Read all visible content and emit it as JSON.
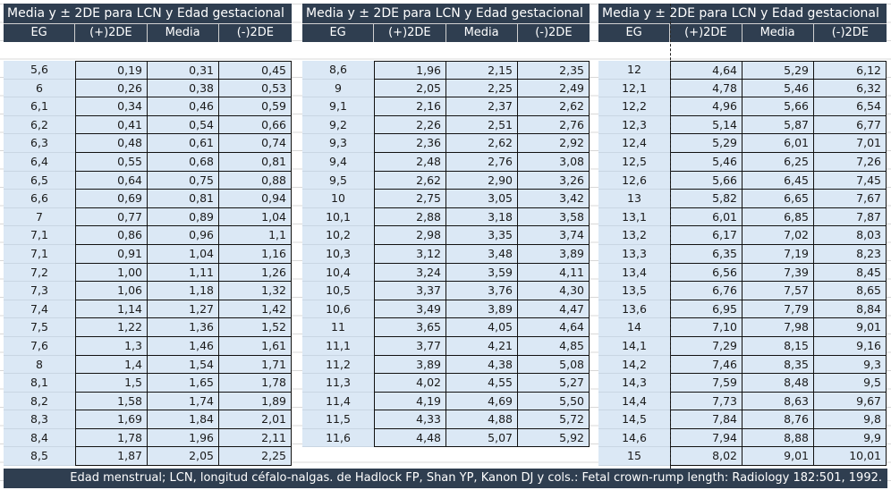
{
  "tables": [
    {
      "title": "Media y ± 2DE para LCN y Edad gestacional",
      "headers": [
        "EG",
        "(+)2DE",
        "Media",
        "(-)2DE"
      ],
      "rows": [
        [
          "5,6",
          "0,19",
          "0,31",
          "0,45"
        ],
        [
          "6",
          "0,26",
          "0,38",
          "0,53"
        ],
        [
          "6,1",
          "0,34",
          "0,46",
          "0,59"
        ],
        [
          "6,2",
          "0,41",
          "0,54",
          "0,66"
        ],
        [
          "6,3",
          "0,48",
          "0,61",
          "0,74"
        ],
        [
          "6,4",
          "0,55",
          "0,68",
          "0,81"
        ],
        [
          "6,5",
          "0,64",
          "0,75",
          "0,88"
        ],
        [
          "6,6",
          "0,69",
          "0,81",
          "0,94"
        ],
        [
          "7",
          "0,77",
          "0,89",
          "1,04"
        ],
        [
          "7,1",
          "0,86",
          "0,96",
          "1,1"
        ],
        [
          "7,1",
          "0,91",
          "1,04",
          "1,16"
        ],
        [
          "7,2",
          "1,00",
          "1,11",
          "1,26"
        ],
        [
          "7,3",
          "1,06",
          "1,18",
          "1,32"
        ],
        [
          "7,4",
          "1,14",
          "1,27",
          "1,42"
        ],
        [
          "7,5",
          "1,22",
          "1,36",
          "1,52"
        ],
        [
          "7,6",
          "1,3",
          "1,46",
          "1,61"
        ],
        [
          "8",
          "1,4",
          "1,54",
          "1,71"
        ],
        [
          "8,1",
          "1,5",
          "1,65",
          "1,78"
        ],
        [
          "8,2",
          "1,58",
          "1,74",
          "1,89"
        ],
        [
          "8,3",
          "1,69",
          "1,84",
          "2,01"
        ],
        [
          "8,4",
          "1,78",
          "1,96",
          "2,11"
        ],
        [
          "8,5",
          "1,87",
          "2,05",
          "2,25"
        ]
      ]
    },
    {
      "title": "Media y ± 2DE para LCN y Edad gestacional",
      "headers": [
        "EG",
        "(+)2DE",
        "Media",
        "(-)2DE"
      ],
      "rows": [
        [
          "8,6",
          "1,96",
          "2,15",
          "2,35"
        ],
        [
          "9",
          "2,05",
          "2,25",
          "2,49"
        ],
        [
          "9,1",
          "2,16",
          "2,37",
          "2,62"
        ],
        [
          "9,2",
          "2,26",
          "2,51",
          "2,76"
        ],
        [
          "9,3",
          "2,36",
          "2,62",
          "2,92"
        ],
        [
          "9,4",
          "2,48",
          "2,76",
          "3,08"
        ],
        [
          "9,5",
          "2,62",
          "2,90",
          "3,26"
        ],
        [
          "10",
          "2,75",
          "3,05",
          "3,42"
        ],
        [
          "10,1",
          "2,88",
          "3,18",
          "3,58"
        ],
        [
          "10,2",
          "2,98",
          "3,35",
          "3,74"
        ],
        [
          "10,3",
          "3,12",
          "3,48",
          "3,89"
        ],
        [
          "10,4",
          "3,24",
          "3,59",
          "4,11"
        ],
        [
          "10,5",
          "3,37",
          "3,76",
          "4,30"
        ],
        [
          "10,6",
          "3,49",
          "3,89",
          "4,47"
        ],
        [
          "11",
          "3,65",
          "4,05",
          "4,64"
        ],
        [
          "11,1",
          "3,77",
          "4,21",
          "4,85"
        ],
        [
          "11,2",
          "3,89",
          "4,38",
          "5,08"
        ],
        [
          "11,3",
          "4,02",
          "4,55",
          "5,27"
        ],
        [
          "11,4",
          "4,19",
          "4,69",
          "5,50"
        ],
        [
          "11,5",
          "4,33",
          "4,88",
          "5,72"
        ],
        [
          "11,6",
          "4,48",
          "5,07",
          "5,92"
        ]
      ]
    },
    {
      "title": "Media y ± 2DE para LCN y Edad gestacional",
      "headers": [
        "EG",
        "(+)2DE",
        "Media",
        "(-)2DE"
      ],
      "rows": [
        [
          "12",
          "4,64",
          "5,29",
          "6,12"
        ],
        [
          "12,1",
          "4,78",
          "5,46",
          "6,32"
        ],
        [
          "12,2",
          "4,96",
          "5,66",
          "6,54"
        ],
        [
          "12,3",
          "5,14",
          "5,87",
          "6,77"
        ],
        [
          "12,4",
          "5,29",
          "6,01",
          "7,01"
        ],
        [
          "12,5",
          "5,46",
          "6,25",
          "7,26"
        ],
        [
          "12,6",
          "5,66",
          "6,45",
          "7,45"
        ],
        [
          "13",
          "5,82",
          "6,65",
          "7,67"
        ],
        [
          "13,1",
          "6,01",
          "6,85",
          "7,87"
        ],
        [
          "13,2",
          "6,17",
          "7,02",
          "8,03"
        ],
        [
          "13,3",
          "6,35",
          "7,19",
          "8,23"
        ],
        [
          "13,4",
          "6,56",
          "7,39",
          "8,45"
        ],
        [
          "13,5",
          "6,76",
          "7,57",
          "8,65"
        ],
        [
          "13,6",
          "6,95",
          "7,79",
          "8,84"
        ],
        [
          "14",
          "7,10",
          "7,98",
          "9,01"
        ],
        [
          "14,1",
          "7,29",
          "8,15",
          "9,16"
        ],
        [
          "14,2",
          "7,46",
          "8,35",
          "9,3"
        ],
        [
          "14,3",
          "7,59",
          "8,48",
          "9,5"
        ],
        [
          "14,4",
          "7,73",
          "8,63",
          "9,67"
        ],
        [
          "14,5",
          "7,84",
          "8,76",
          "9,8"
        ],
        [
          "14,6",
          "7,94",
          "8,88",
          "9,9"
        ],
        [
          "15",
          "8,02",
          "9,01",
          "10,01"
        ]
      ]
    }
  ],
  "footer": "Edad menstrual; LCN, longitud céfalo-nalgas. de Hadlock FP, Shan YP, Kanon DJ y cols.: Fetal crown-rump length: Radiology 182:501, 1992."
}
